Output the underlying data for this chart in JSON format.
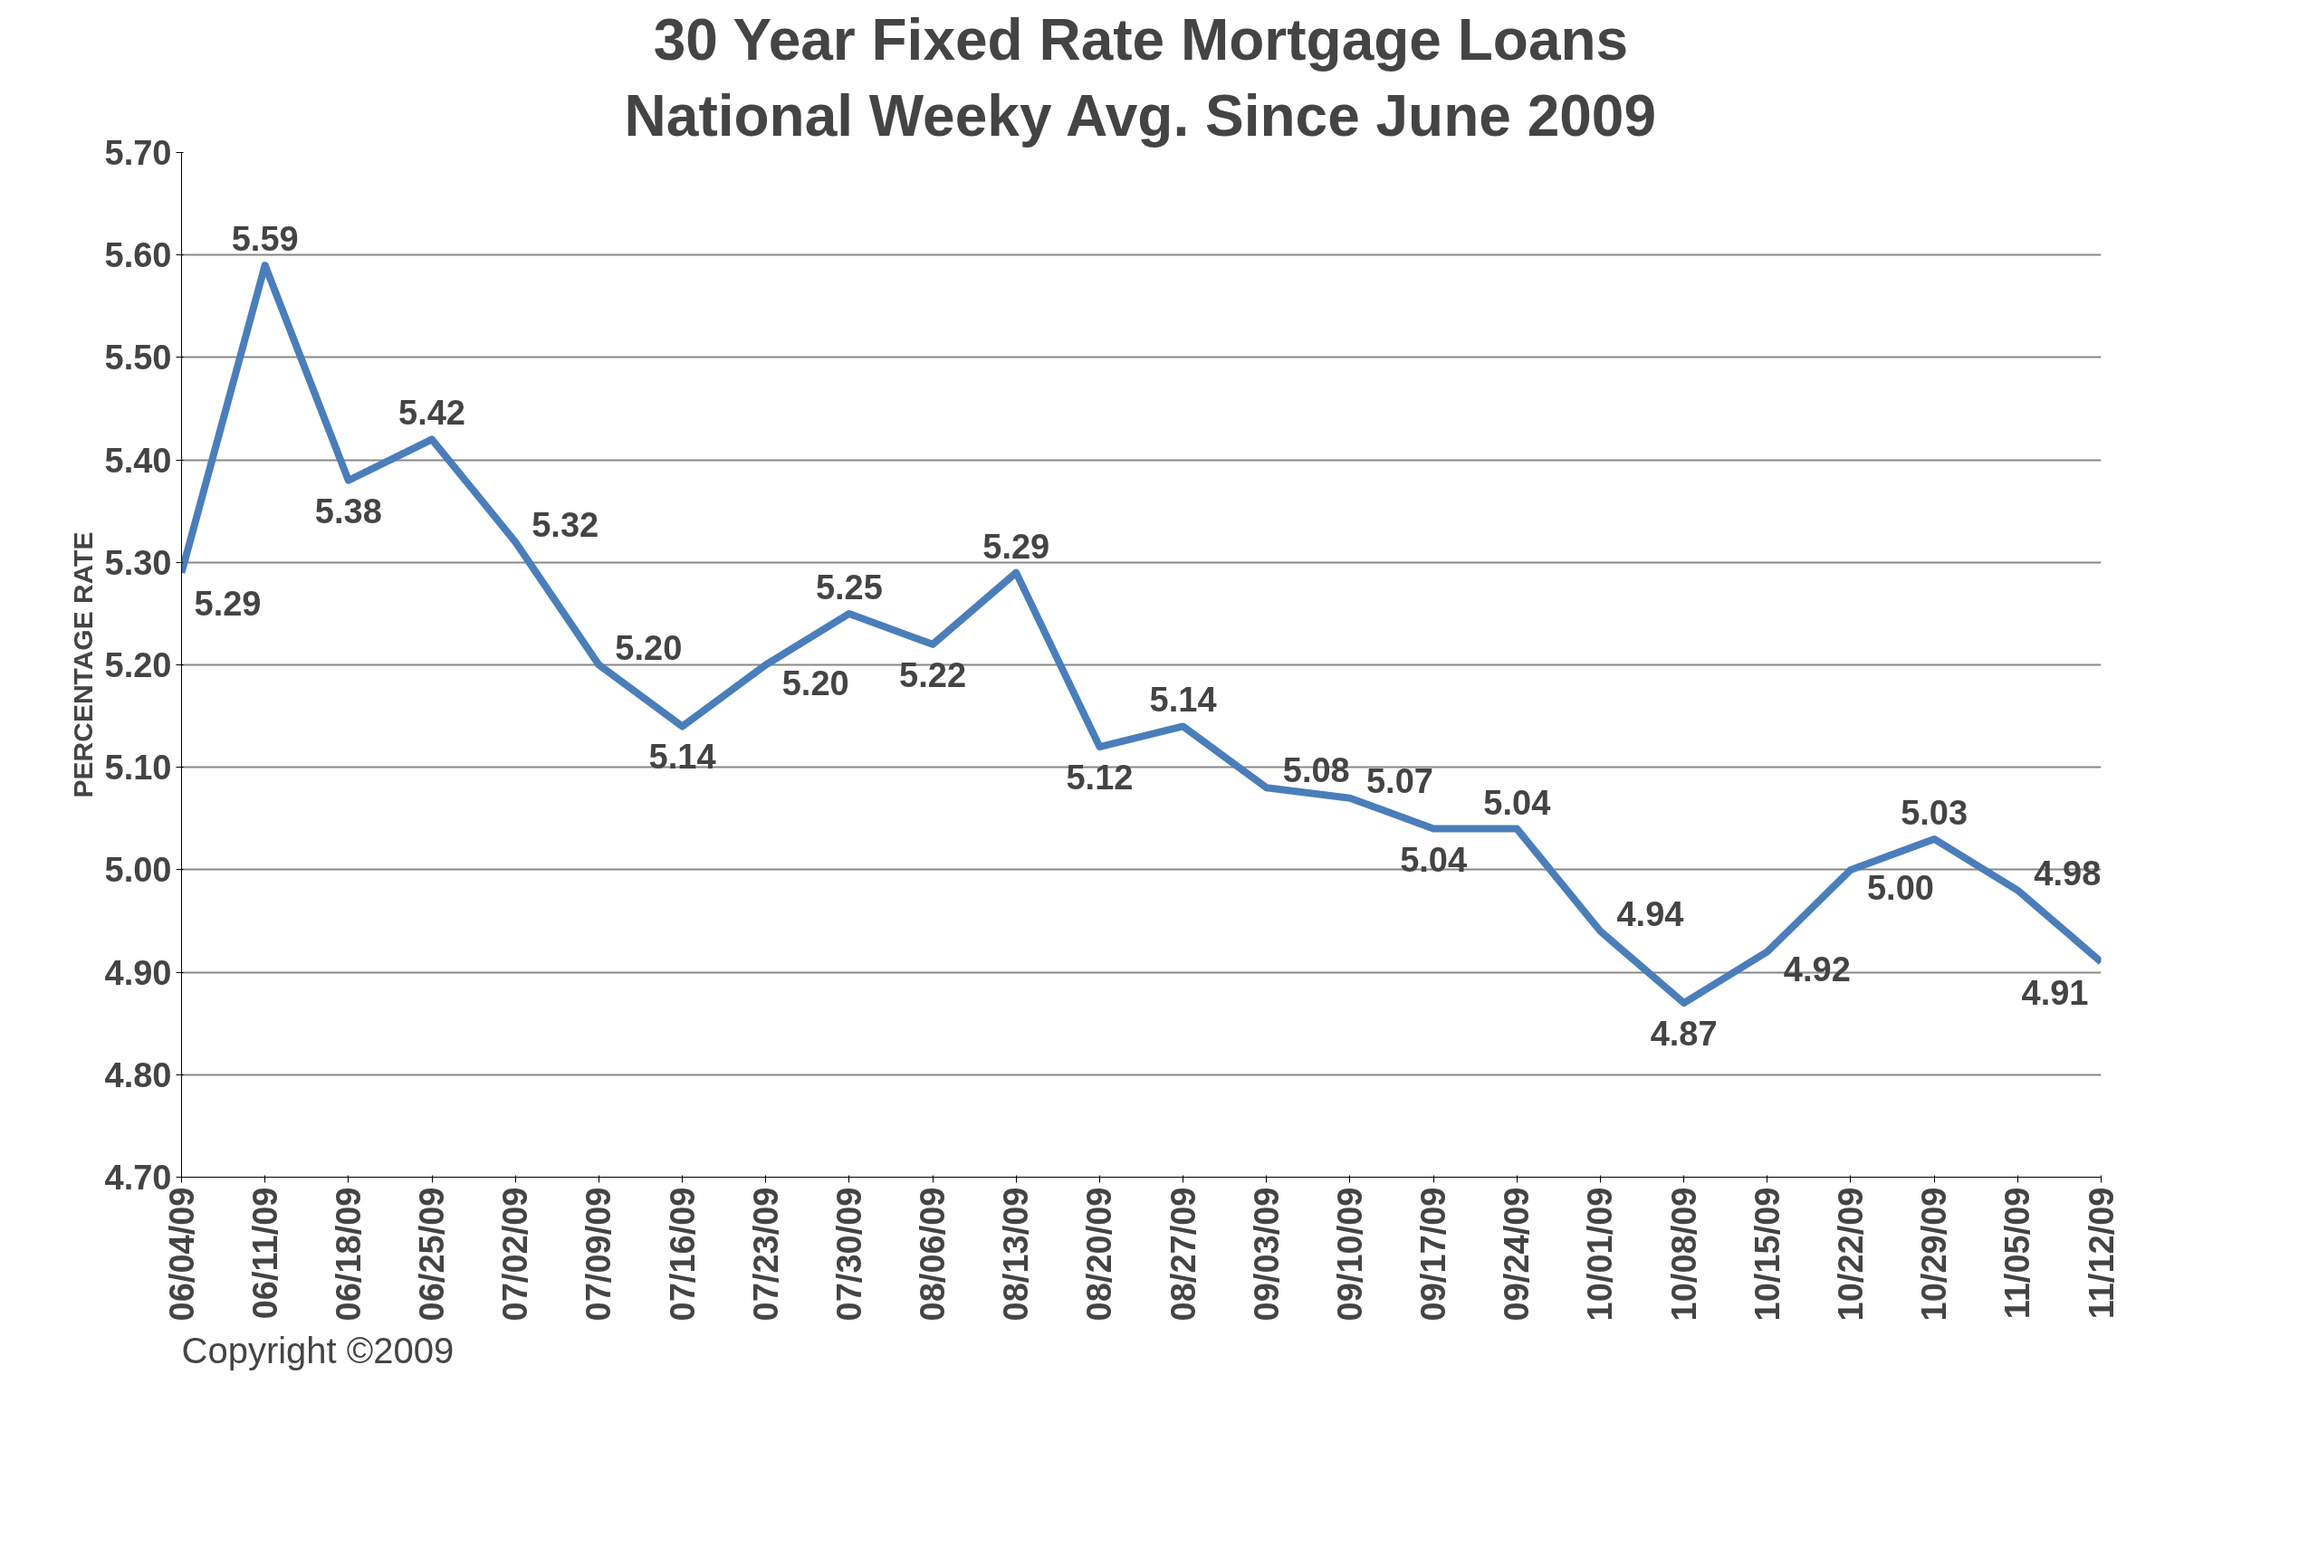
{
  "chart_data": {
    "type": "line",
    "title": "30 Year Fixed Rate Mortgage Loans",
    "subtitle": "National Weeky Avg. Since June 2009",
    "ylabel": "PERCENTAGE RATE",
    "categories": [
      "06/04/09",
      "06/11/09",
      "06/18/09",
      "06/25/09",
      "07/02/09",
      "07/09/09",
      "07/16/09",
      "07/23/09",
      "07/30/09",
      "08/06/09",
      "08/13/09",
      "08/20/09",
      "08/27/09",
      "09/03/09",
      "09/10/09",
      "09/17/09",
      "09/24/09",
      "10/01/09",
      "10/08/09",
      "10/15/09",
      "10/22/09",
      "10/29/09",
      "11/05/09",
      "11/12/09"
    ],
    "series": [
      {
        "color": "#4a7ebb",
        "values": [
          5.29,
          5.59,
          5.38,
          5.42,
          5.32,
          5.2,
          5.14,
          5.2,
          5.25,
          5.22,
          5.29,
          5.12,
          5.14,
          5.08,
          5.07,
          5.04,
          5.04,
          4.94,
          4.87,
          4.92,
          5.0,
          5.03,
          4.98,
          4.91
        ]
      }
    ],
    "ylim": [
      4.7,
      5.7
    ],
    "yticks": [
      {
        "value": 4.7,
        "label": "4.70"
      },
      {
        "value": 4.8,
        "label": "4.80"
      },
      {
        "value": 4.9,
        "label": "4.90"
      },
      {
        "value": 5.0,
        "label": "5.00"
      },
      {
        "value": 5.1,
        "label": "5.10"
      },
      {
        "value": 5.2,
        "label": "5.20"
      },
      {
        "value": 5.3,
        "label": "5.30"
      },
      {
        "value": 5.4,
        "label": "5.40"
      },
      {
        "value": 5.5,
        "label": "5.50"
      },
      {
        "value": 5.6,
        "label": "5.60"
      },
      {
        "value": 5.7,
        "label": "5.70"
      }
    ],
    "value_labels": [
      "5.29",
      "5.59",
      "5.38",
      "5.42",
      "5.32",
      "5.20",
      "5.14",
      "5.20",
      "5.25",
      "5.22",
      "5.29",
      "5.12",
      "5.14",
      "5.08",
      "5.07",
      "5.04",
      "5.04",
      "4.94",
      "4.87",
      "4.92",
      "5.00",
      "5.03",
      "4.98",
      "4.91"
    ],
    "grid": "y",
    "line_style": "solid",
    "marker": "none",
    "annotations": [
      "Copyright ©2009"
    ]
  }
}
